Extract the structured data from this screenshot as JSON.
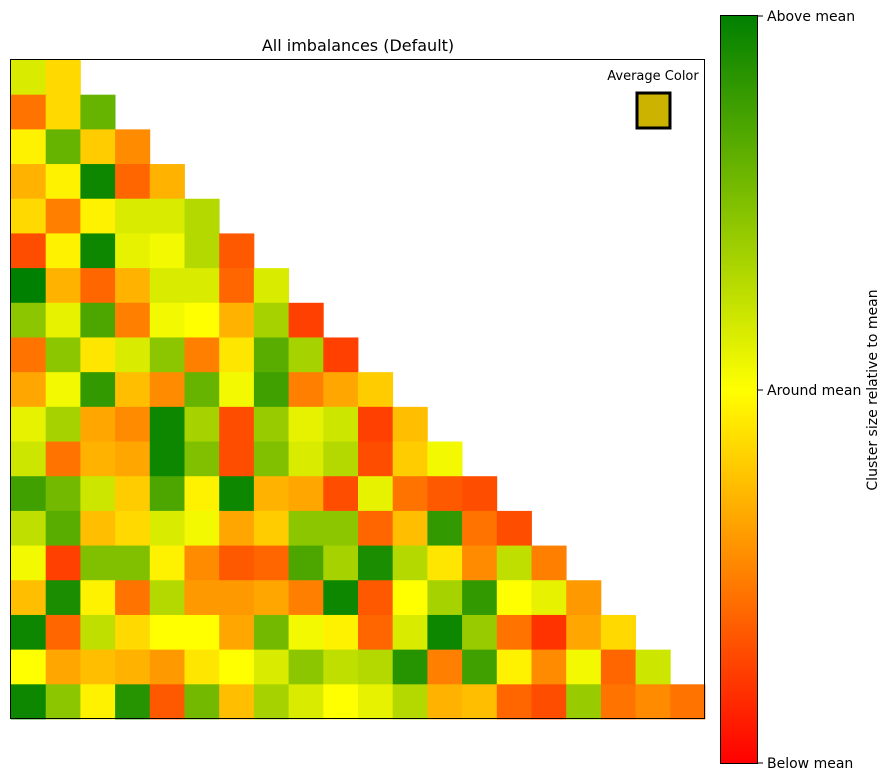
{
  "chart_data": {
    "type": "heatmap",
    "title": "All imbalances (Default)",
    "average_color_label": "Average Color",
    "average_color": "#ccb300",
    "colorbar": {
      "label": "Cluster size relative to mean",
      "ticks": [
        "Above mean",
        "Around mean",
        "Below mean"
      ],
      "colors": [
        "#008000",
        "#ffff00",
        "#ff0000"
      ]
    },
    "triangular": "lower",
    "scale_note": "values: -1 = Below mean (red), 0 = Around mean (yellow), +1 = Above mean (green)",
    "rows": [
      [
        0.15,
        -0.15
      ],
      [
        -0.55,
        -0.15,
        0.6
      ],
      [
        -0.05,
        0.6,
        -0.2,
        -0.45
      ],
      [
        -0.3,
        -0.05,
        0.95,
        -0.6,
        -0.3
      ],
      [
        -0.15,
        -0.5,
        -0.05,
        0.15,
        0.15,
        0.3
      ],
      [
        -0.7,
        -0.05,
        0.95,
        0.1,
        0.05,
        0.3,
        -0.65
      ],
      [
        1.0,
        -0.3,
        -0.6,
        -0.3,
        0.15,
        0.15,
        -0.6,
        0.15
      ],
      [
        0.45,
        0.1,
        0.7,
        -0.5,
        0.05,
        0.0,
        -0.3,
        0.35,
        -0.75
      ],
      [
        -0.55,
        0.45,
        -0.1,
        0.15,
        0.45,
        -0.5,
        -0.1,
        0.65,
        0.35,
        -0.75
      ],
      [
        -0.35,
        0.05,
        0.8,
        -0.25,
        -0.45,
        0.6,
        0.05,
        0.75,
        -0.5,
        -0.35,
        -0.2
      ],
      [
        0.1,
        0.35,
        -0.35,
        -0.45,
        0.95,
        0.35,
        -0.7,
        0.4,
        0.1,
        0.2,
        -0.75,
        -0.25
      ],
      [
        0.2,
        -0.55,
        -0.3,
        -0.35,
        0.95,
        0.5,
        -0.7,
        0.5,
        0.15,
        0.3,
        -0.7,
        -0.2,
        0.05
      ],
      [
        0.75,
        0.55,
        0.2,
        -0.2,
        0.7,
        -0.05,
        0.95,
        -0.3,
        -0.35,
        -0.7,
        0.1,
        -0.55,
        -0.65,
        -0.7
      ],
      [
        0.25,
        0.65,
        -0.25,
        -0.15,
        0.15,
        0.05,
        -0.35,
        -0.2,
        0.45,
        0.45,
        -0.6,
        -0.25,
        0.8,
        -0.55,
        -0.7
      ],
      [
        0.05,
        -0.75,
        0.5,
        0.5,
        -0.05,
        -0.45,
        -0.65,
        -0.6,
        0.7,
        0.35,
        0.9,
        0.3,
        -0.1,
        -0.45,
        0.25,
        -0.5
      ],
      [
        -0.25,
        0.9,
        -0.05,
        -0.55,
        0.3,
        -0.4,
        -0.4,
        -0.35,
        -0.5,
        0.95,
        -0.65,
        0.0,
        0.35,
        0.8,
        0.0,
        0.1,
        -0.4
      ],
      [
        0.95,
        -0.6,
        0.25,
        -0.15,
        0.0,
        0.0,
        -0.35,
        0.55,
        0.05,
        -0.05,
        -0.6,
        0.15,
        0.95,
        0.4,
        -0.55,
        -0.8,
        -0.35,
        -0.15
      ],
      [
        0.0,
        -0.35,
        -0.25,
        -0.3,
        -0.4,
        -0.1,
        0.0,
        0.15,
        0.45,
        0.25,
        0.3,
        0.85,
        -0.5,
        0.75,
        -0.05,
        -0.45,
        0.05,
        -0.6,
        0.2
      ],
      [
        0.95,
        0.45,
        -0.05,
        0.85,
        -0.65,
        0.55,
        -0.25,
        0.35,
        0.15,
        0.0,
        0.1,
        0.3,
        -0.3,
        -0.25,
        -0.6,
        -0.7,
        0.4,
        -0.55,
        -0.45,
        -0.55
      ]
    ]
  }
}
